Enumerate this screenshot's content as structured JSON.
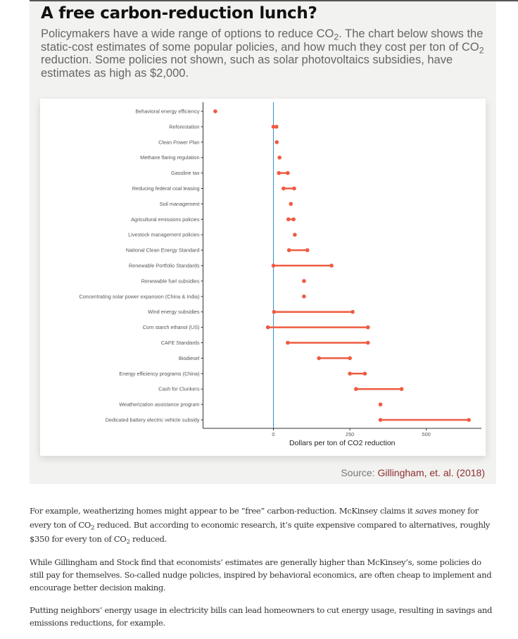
{
  "header": {
    "title": "A free carbon-reduction lunch?",
    "subtitle_parts": [
      "Policymakers have a wide range of options to reduce CO",
      "2",
      ". The chart below shows the static-cost estimates of some popular policies, and how much they cost per ton of CO",
      "2",
      " reduction. Some policies not shown, such as solar photovoltaics subsidies, have estimates as high as $2,000."
    ]
  },
  "chart_data": {
    "type": "dumbbell",
    "title": "",
    "xlabel": "Dollars per ton of CO2 reduction",
    "ylabel": "",
    "xlim": [
      -230,
      680
    ],
    "xticks": [
      0,
      250,
      500
    ],
    "xtick_labels": [
      "0",
      "250",
      "500"
    ],
    "reference_line": 0,
    "grid": false,
    "colors": {
      "point": "#ef5b42",
      "reference": "#3a8fc4",
      "axis": "#333333"
    },
    "categories": [
      "Behavioral energy efficiency",
      "Reforestation",
      "Clean Power Plan",
      "Methane flaring regulation",
      "Gasoline tax",
      "Reducing federal coal leasing",
      "Soil management",
      "Agricultural emissions policies",
      "Livestock management policies",
      "National Clean Energy Standard",
      "Renewable Portfolio Standards",
      "Renewable fuel subsidies",
      "Concentrating solar power expansion (China & India)",
      "Wind energy subsidies",
      "Corn starch ethanol (US)",
      "CAFE Standards",
      "Biodiesel",
      "Energy efficiency programs (China)",
      "Cash for Clunkers",
      "Weatherization assistance program",
      "Dedicated battery electric vehicle subsidy"
    ],
    "low": [
      -190,
      0,
      11,
      20,
      18,
      33,
      57,
      49,
      70,
      51,
      0,
      100,
      100,
      2,
      -18,
      47,
      149,
      250,
      270,
      350,
      350
    ],
    "high": [
      -190,
      10,
      11,
      20,
      47,
      68,
      57,
      66,
      70,
      111,
      190,
      100,
      100,
      259,
      309,
      309,
      250,
      299,
      419,
      350,
      639
    ]
  },
  "source": {
    "label": "Source: ",
    "link": "Gillingham, et. al. (2018)"
  },
  "article": {
    "p1": [
      "For example, weatherizing homes might appear to be “free” carbon-reduction. McKinsey claims it ",
      "saves",
      " money for every ton of CO",
      "2",
      " reduced. But according to economic research, it’s quite expensive compared to alternatives, roughly $350 for every ton of CO",
      "2",
      " reduced."
    ],
    "p2": "While Gillingham and Stock find that economists’ estimates are generally higher than McKinsey’s, some policies do still pay for themselves. So-called nudge policies, inspired by behavioral economics, are often cheap to implement and encourage better decision making.",
    "p3": "Putting neighbors’ energy usage in electricity bills can lead homeowners to cut energy usage, resulting in savings and emissions reductions, for example."
  }
}
